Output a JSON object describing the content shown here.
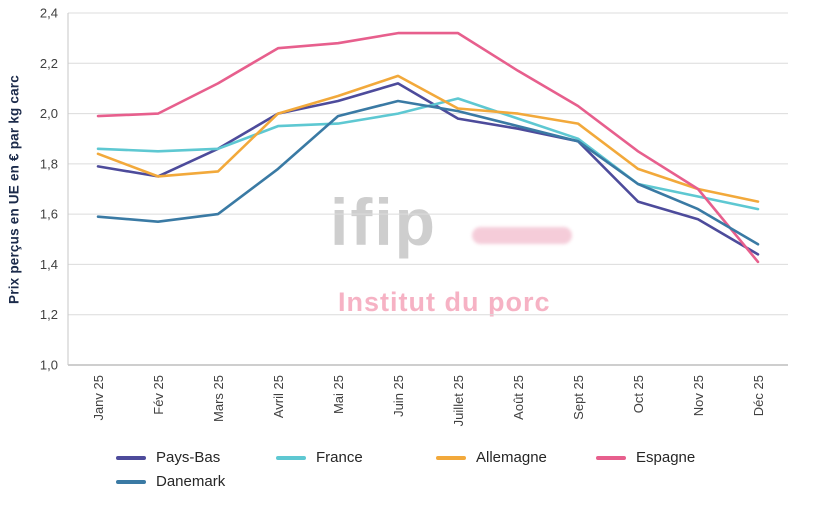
{
  "watermark": {
    "logo_text": "ifip",
    "subtitle": "Institut du porc",
    "logo_color": "#c9c9c9",
    "accent_color": "#eda4bb",
    "subtitle_color": "#f59fb6"
  },
  "chart_data": {
    "type": "line",
    "title": "",
    "ylabel": "Prix perçus en UE en € par kg carc",
    "xlabel": "",
    "ylim": [
      1.0,
      2.4
    ],
    "ytick_values": [
      1.0,
      1.2,
      1.4,
      1.6,
      1.8,
      2.0,
      2.2,
      2.4
    ],
    "ytick_labels": [
      "1,0",
      "1,2",
      "1,4",
      "1,6",
      "1,8",
      "2,0",
      "2,2",
      "2,4"
    ],
    "grid": "horizontal",
    "grid_color": "#dcdcdc",
    "axis_color": "#9e9e9e",
    "legend_position": "bottom",
    "categories": [
      "Janv 25",
      "Fév 25",
      "Mars 25",
      "Avril 25",
      "Mai 25",
      "Juin 25",
      "Juillet 25",
      "Août 25",
      "Sept 25",
      "Oct 25",
      "Nov 25",
      "Déc 25"
    ],
    "series": [
      {
        "name": "Pays-Bas",
        "color": "#4d4b9b",
        "values": [
          1.79,
          1.75,
          1.86,
          2.0,
          2.05,
          2.12,
          1.98,
          1.94,
          1.89,
          1.65,
          1.58,
          1.44
        ]
      },
      {
        "name": "France",
        "color": "#5ec8d2",
        "values": [
          1.86,
          1.85,
          1.86,
          1.95,
          1.96,
          2.0,
          2.06,
          1.98,
          1.9,
          1.72,
          1.67,
          1.62
        ]
      },
      {
        "name": "Allemagne",
        "color": "#f2a93b",
        "values": [
          1.84,
          1.75,
          1.77,
          2.0,
          2.07,
          2.15,
          2.02,
          2.0,
          1.96,
          1.78,
          1.7,
          1.65
        ]
      },
      {
        "name": "Espagne",
        "color": "#e75f8d",
        "values": [
          1.99,
          2.0,
          2.12,
          2.26,
          2.28,
          2.32,
          2.32,
          2.17,
          2.03,
          1.85,
          1.7,
          1.41
        ]
      },
      {
        "name": "Danemark",
        "color": "#3a7aa4",
        "values": [
          1.59,
          1.57,
          1.6,
          1.78,
          1.99,
          2.05,
          2.01,
          1.95,
          1.89,
          1.72,
          1.62,
          1.48
        ]
      }
    ]
  }
}
